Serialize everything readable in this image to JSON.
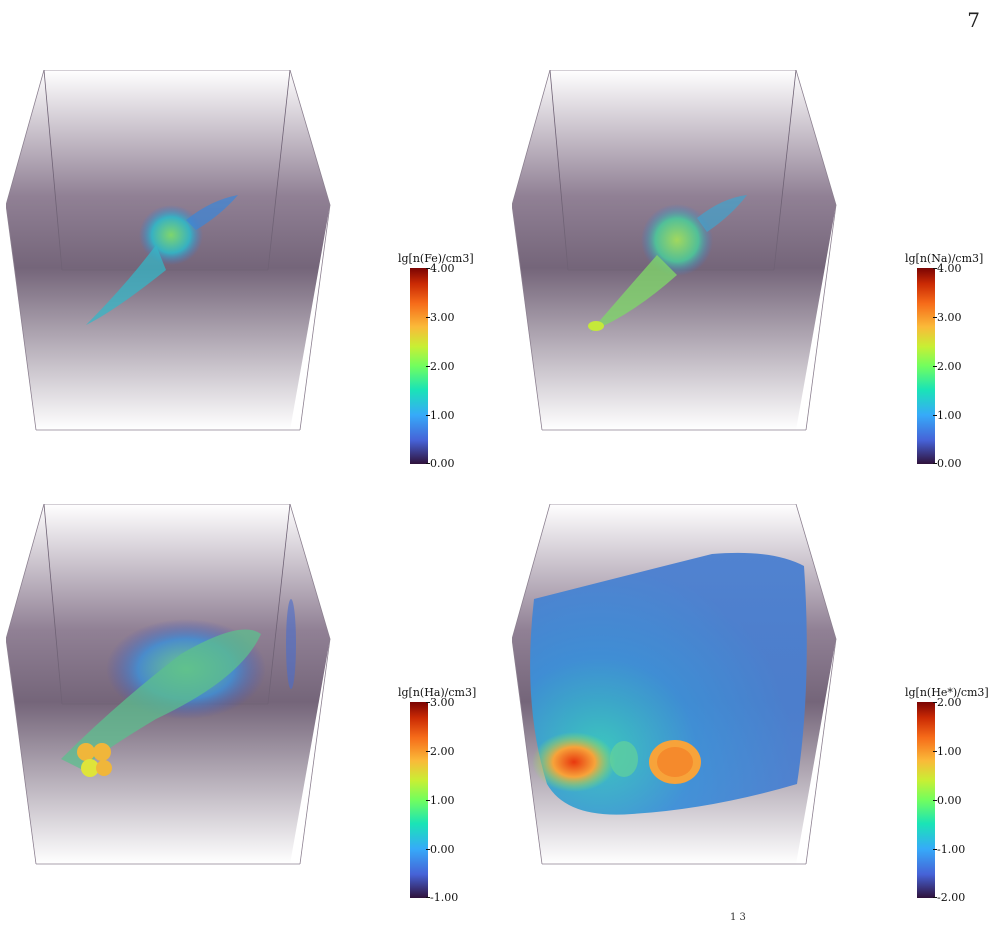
{
  "page": {
    "number": "7"
  },
  "panels": [
    {
      "id": "fe",
      "colorbar": {
        "title": "lg[n(Fe)/cm3]",
        "ticks": [
          "4.00",
          "3.00",
          "2.00",
          "1.00",
          "0.00"
        ]
      }
    },
    {
      "id": "na",
      "colorbar": {
        "title": "lg[n(Na)/cm3]",
        "ticks": [
          "4.00",
          "3.00",
          "2.00",
          "1.00",
          "0.00"
        ]
      }
    },
    {
      "id": "ha",
      "colorbar": {
        "title": "lg[n(Ha)/cm3]",
        "ticks": [
          "3.00",
          "2.00",
          "1.00",
          "0.00",
          "-1.00"
        ]
      }
    },
    {
      "id": "he",
      "colorbar": {
        "title": "lg[n(He*)/cm3]",
        "ticks": [
          "2.00",
          "1.00",
          "0.00",
          "-1.00",
          "-2.00"
        ]
      }
    }
  ],
  "footer": {
    "fragment": "1      3"
  },
  "colors": {
    "box_bg_top": "#d9d0dc",
    "box_bg_mid": "#5a4760",
    "colormap": "turbo"
  }
}
